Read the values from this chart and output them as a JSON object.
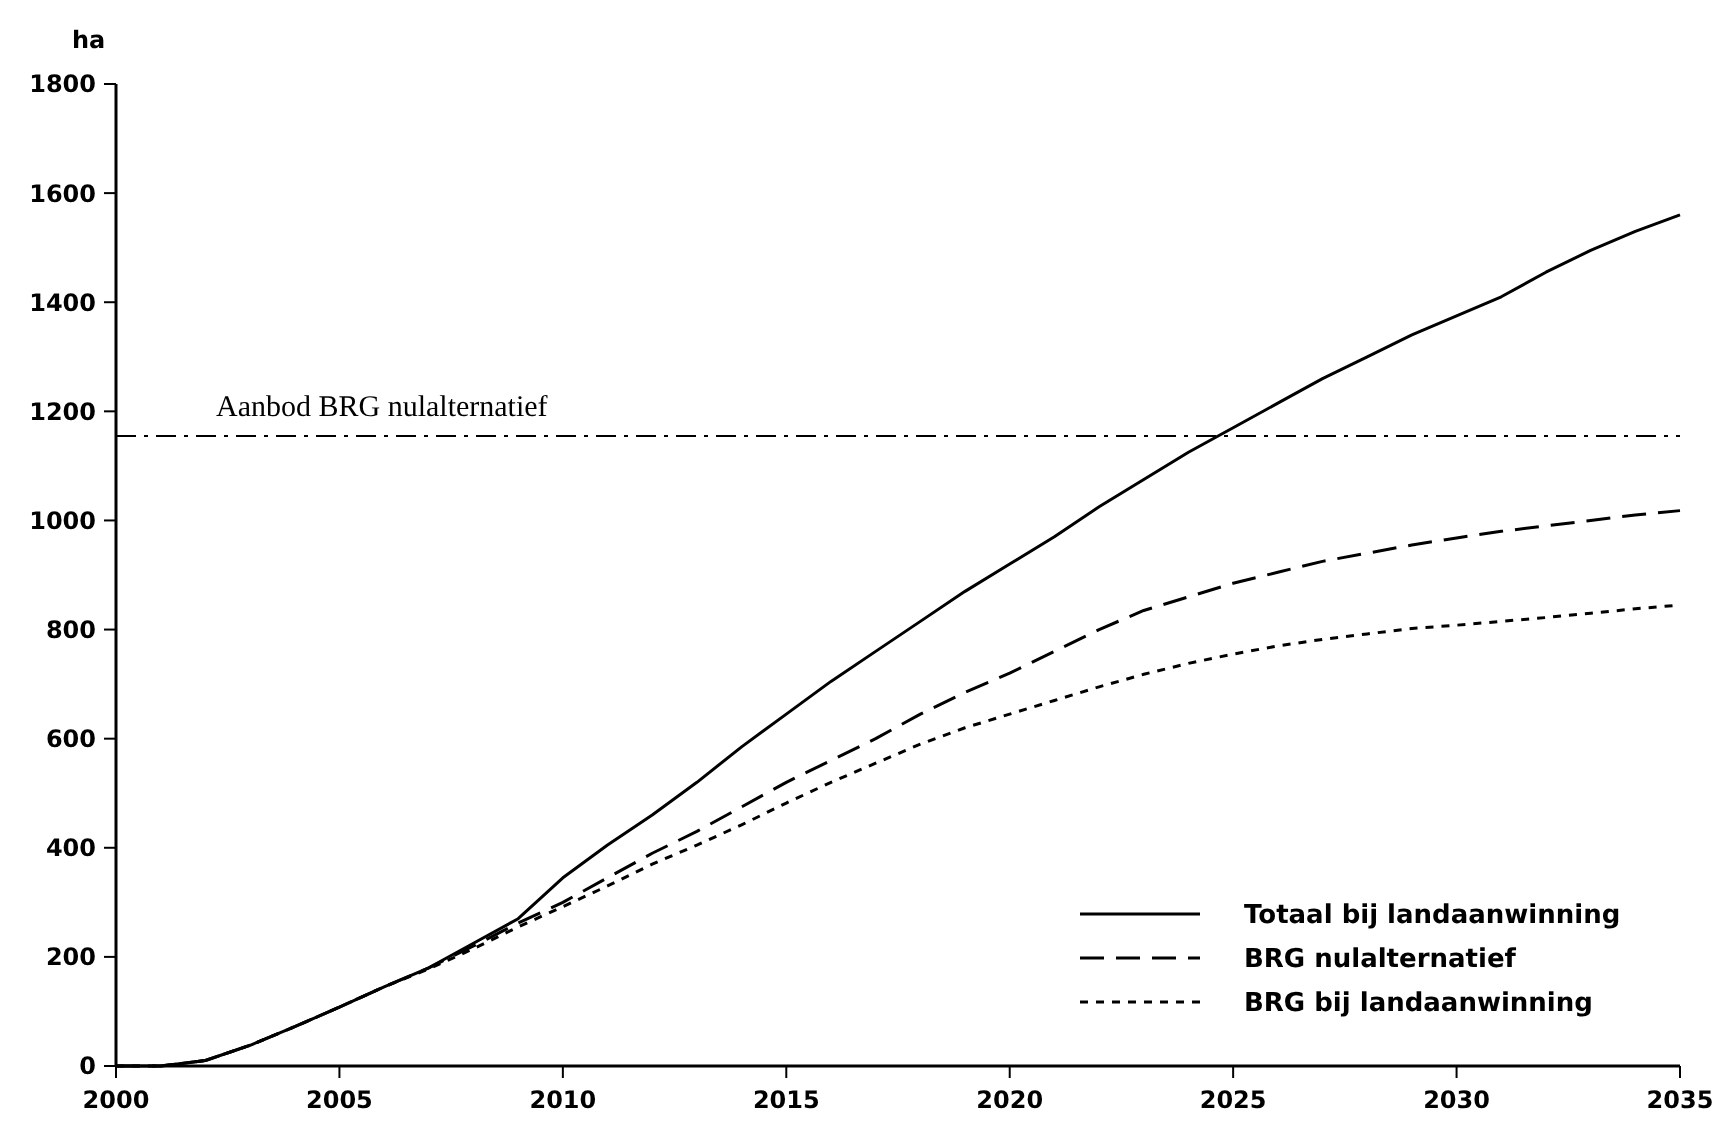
{
  "chart_data": {
    "type": "line",
    "ylabel": "ha",
    "x": [
      2000,
      2001,
      2002,
      2003,
      2004,
      2005,
      2006,
      2007,
      2008,
      2009,
      2010,
      2011,
      2012,
      2013,
      2014,
      2015,
      2016,
      2017,
      2018,
      2019,
      2020,
      2021,
      2022,
      2023,
      2024,
      2025,
      2026,
      2027,
      2028,
      2029,
      2030,
      2031,
      2032,
      2033,
      2034,
      2035
    ],
    "series": [
      {
        "name": "Totaal bij landaanwinning",
        "color": "#000000",
        "line_style": "solid",
        "values": [
          0,
          0,
          10,
          38,
          72,
          108,
          145,
          180,
          225,
          270,
          345,
          405,
          460,
          520,
          585,
          645,
          705,
          760,
          815,
          870,
          920,
          970,
          1025,
          1075,
          1125,
          1170,
          1215,
          1260,
          1300,
          1340,
          1375,
          1410,
          1455,
          1495,
          1530,
          1560
        ]
      },
      {
        "name": "BRG nulalternatief",
        "color": "#000000",
        "line_style": "dashed",
        "values": [
          0,
          0,
          10,
          38,
          72,
          108,
          145,
          180,
          220,
          262,
          300,
          345,
          390,
          430,
          475,
          520,
          560,
          600,
          645,
          685,
          720,
          760,
          800,
          835,
          860,
          885,
          905,
          925,
          940,
          955,
          968,
          980,
          990,
          1000,
          1010,
          1018
        ]
      },
      {
        "name": "BRG bij landaanwinning",
        "color": "#000000",
        "line_style": "dotted",
        "values": [
          0,
          0,
          10,
          38,
          72,
          108,
          145,
          178,
          215,
          255,
          292,
          330,
          370,
          405,
          442,
          482,
          520,
          555,
          590,
          620,
          645,
          670,
          695,
          718,
          738,
          755,
          770,
          782,
          792,
          802,
          808,
          815,
          822,
          830,
          838,
          845
        ]
      }
    ],
    "xlim": [
      2000,
      2035
    ],
    "xticks": [
      2000,
      2005,
      2010,
      2015,
      2020,
      2025,
      2030,
      2035
    ],
    "ylim": [
      0,
      1800
    ],
    "yticks": [
      0,
      200,
      400,
      600,
      800,
      1000,
      1200,
      1400,
      1600,
      1800
    ],
    "ref_lines": [
      {
        "axis": "y",
        "value": 1155,
        "label": "Aanbod BRG nulalternatief",
        "color": "#000000",
        "line_style": "dashdot"
      }
    ],
    "grid": false,
    "legend": "bottom right",
    "marker": "none"
  }
}
